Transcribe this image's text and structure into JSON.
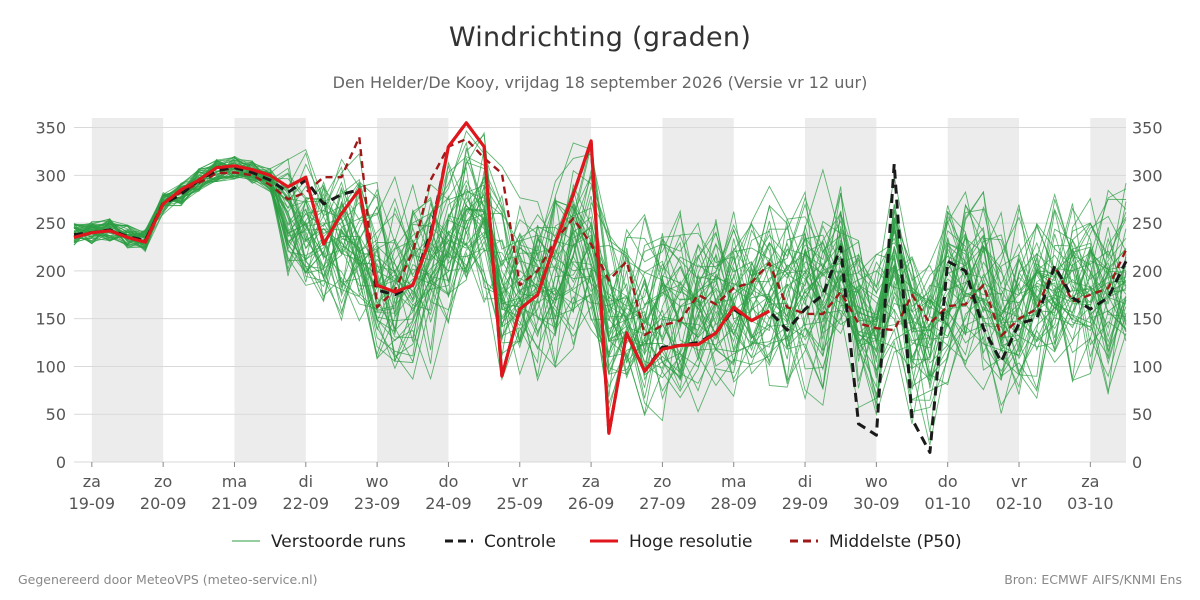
{
  "chart_data": {
    "type": "line",
    "title": "Windrichting (graden)",
    "subtitle": "Den Helder/De Kooy, vrijdag 18 september 2026 (Versie vr 12 uur)",
    "ylim": [
      0,
      360
    ],
    "yticks": [
      0,
      50,
      100,
      150,
      200,
      250,
      300,
      350
    ],
    "grid": true,
    "legend_position": "bottom",
    "x_days": [
      {
        "day": "za",
        "date": "19-09",
        "shaded": true
      },
      {
        "day": "zo",
        "date": "20-09",
        "shaded": false
      },
      {
        "day": "ma",
        "date": "21-09",
        "shaded": true
      },
      {
        "day": "di",
        "date": "22-09",
        "shaded": false
      },
      {
        "day": "wo",
        "date": "23-09",
        "shaded": true
      },
      {
        "day": "do",
        "date": "24-09",
        "shaded": false
      },
      {
        "day": "vr",
        "date": "25-09",
        "shaded": true
      },
      {
        "day": "za",
        "date": "26-09",
        "shaded": false
      },
      {
        "day": "zo",
        "date": "27-09",
        "shaded": true
      },
      {
        "day": "ma",
        "date": "28-09",
        "shaded": false
      },
      {
        "day": "di",
        "date": "29-09",
        "shaded": true
      },
      {
        "day": "wo",
        "date": "30-09",
        "shaded": false
      },
      {
        "day": "do",
        "date": "01-10",
        "shaded": true
      },
      {
        "day": "vr",
        "date": "02-10",
        "shaded": false
      },
      {
        "day": "za",
        "date": "03-10",
        "shaded": true
      }
    ],
    "x_domain_days": [
      -0.25,
      14.5
    ],
    "series": [
      {
        "name": "Controle",
        "color": "#1a1a1a",
        "dash": true,
        "points": [
          [
            -0.25,
            238
          ],
          [
            0,
            240
          ],
          [
            0.25,
            243
          ],
          [
            0.5,
            236
          ],
          [
            0.75,
            232
          ],
          [
            1,
            270
          ],
          [
            1.25,
            280
          ],
          [
            1.5,
            295
          ],
          [
            1.75,
            305
          ],
          [
            2,
            308
          ],
          [
            2.25,
            303
          ],
          [
            2.5,
            295
          ],
          [
            2.75,
            282
          ],
          [
            3,
            295
          ],
          [
            3.25,
            270
          ],
          [
            3.5,
            280
          ],
          [
            3.75,
            285
          ],
          [
            4,
            180
          ],
          [
            4.25,
            175
          ],
          [
            4.5,
            185
          ],
          [
            4.75,
            240
          ],
          [
            5,
            330
          ],
          [
            5.25,
            355
          ],
          [
            5.5,
            330
          ],
          [
            5.75,
            90
          ],
          [
            6,
            160
          ],
          [
            6.25,
            175
          ],
          [
            6.5,
            230
          ],
          [
            6.75,
            280
          ],
          [
            7,
            335
          ],
          [
            7.25,
            30
          ],
          [
            7.5,
            135
          ],
          [
            7.75,
            95
          ],
          [
            8,
            120
          ],
          [
            8.25,
            122
          ],
          [
            8.5,
            125
          ],
          [
            8.75,
            135
          ],
          [
            9,
            160
          ],
          [
            9.25,
            148
          ],
          [
            9.5,
            158
          ],
          [
            9.75,
            138
          ],
          [
            10,
            160
          ],
          [
            10.25,
            175
          ],
          [
            10.5,
            225
          ],
          [
            10.75,
            40
          ],
          [
            11,
            28
          ],
          [
            11.25,
            312
          ],
          [
            11.5,
            45
          ],
          [
            11.75,
            10
          ],
          [
            12,
            210
          ],
          [
            12.25,
            200
          ],
          [
            12.5,
            140
          ],
          [
            12.75,
            105
          ],
          [
            13,
            145
          ],
          [
            13.25,
            150
          ],
          [
            13.5,
            205
          ],
          [
            13.75,
            172
          ],
          [
            14,
            160
          ],
          [
            14.25,
            172
          ],
          [
            14.5,
            210
          ]
        ]
      },
      {
        "name": "Hoge resolutie",
        "color": "#e0161d",
        "dash": false,
        "points": [
          [
            -0.25,
            235
          ],
          [
            0,
            240
          ],
          [
            0.25,
            242
          ],
          [
            0.5,
            235
          ],
          [
            0.75,
            230
          ],
          [
            1,
            270
          ],
          [
            1.25,
            285
          ],
          [
            1.5,
            295
          ],
          [
            1.75,
            308
          ],
          [
            2,
            310
          ],
          [
            2.25,
            306
          ],
          [
            2.5,
            300
          ],
          [
            2.75,
            288
          ],
          [
            3,
            298
          ],
          [
            3.25,
            228
          ],
          [
            3.5,
            260
          ],
          [
            3.75,
            285
          ],
          [
            4,
            185
          ],
          [
            4.25,
            178
          ],
          [
            4.5,
            185
          ],
          [
            4.75,
            235
          ],
          [
            5,
            330
          ],
          [
            5.25,
            355
          ],
          [
            5.5,
            330
          ],
          [
            5.75,
            90
          ],
          [
            6,
            160
          ],
          [
            6.25,
            175
          ],
          [
            6.5,
            230
          ],
          [
            6.75,
            280
          ],
          [
            7,
            336
          ],
          [
            7.25,
            30
          ],
          [
            7.5,
            135
          ],
          [
            7.75,
            95
          ],
          [
            8,
            118
          ],
          [
            8.25,
            122
          ],
          [
            8.5,
            123
          ],
          [
            8.75,
            135
          ],
          [
            9,
            162
          ],
          [
            9.25,
            148
          ],
          [
            9.5,
            158
          ]
        ]
      },
      {
        "name": "Middelste (P50)",
        "color": "#a01818",
        "dash": true,
        "points": [
          [
            -0.25,
            236
          ],
          [
            0,
            240
          ],
          [
            0.25,
            243
          ],
          [
            0.5,
            235
          ],
          [
            0.75,
            232
          ],
          [
            1,
            272
          ],
          [
            1.25,
            282
          ],
          [
            1.5,
            292
          ],
          [
            1.75,
            302
          ],
          [
            2,
            303
          ],
          [
            2.25,
            300
          ],
          [
            2.5,
            290
          ],
          [
            2.75,
            275
          ],
          [
            3,
            282
          ],
          [
            3.25,
            298
          ],
          [
            3.5,
            298
          ],
          [
            3.75,
            340
          ],
          [
            4,
            162
          ],
          [
            4.25,
            180
          ],
          [
            4.5,
            220
          ],
          [
            4.75,
            295
          ],
          [
            5,
            330
          ],
          [
            5.25,
            338
          ],
          [
            5.5,
            318
          ],
          [
            5.75,
            302
          ],
          [
            6,
            185
          ],
          [
            6.25,
            200
          ],
          [
            6.5,
            232
          ],
          [
            6.75,
            255
          ],
          [
            7,
            228
          ],
          [
            7.25,
            190
          ],
          [
            7.5,
            210
          ],
          [
            7.75,
            133
          ],
          [
            8,
            143
          ],
          [
            8.25,
            148
          ],
          [
            8.5,
            175
          ],
          [
            8.75,
            165
          ],
          [
            9,
            182
          ],
          [
            9.25,
            188
          ],
          [
            9.5,
            208
          ],
          [
            9.75,
            162
          ],
          [
            10,
            155
          ],
          [
            10.25,
            155
          ],
          [
            10.5,
            178
          ],
          [
            10.75,
            145
          ],
          [
            11,
            140
          ],
          [
            11.25,
            138
          ],
          [
            11.5,
            175
          ],
          [
            11.75,
            145
          ],
          [
            12,
            163
          ],
          [
            12.25,
            165
          ],
          [
            12.5,
            185
          ],
          [
            12.75,
            132
          ],
          [
            13,
            150
          ],
          [
            13.25,
            160
          ],
          [
            13.5,
            205
          ],
          [
            13.75,
            168
          ],
          [
            14,
            175
          ],
          [
            14.25,
            182
          ],
          [
            14.5,
            222
          ]
        ]
      }
    ],
    "ensemble": {
      "name": "Verstoorde runs",
      "color": "#2e9e44",
      "member_count": 50,
      "stride_days": 0.25,
      "description_of_spread": "members track control closely until day 3, then diverge across 0-360"
    }
  },
  "legend": {
    "items": [
      {
        "label": "Verstoorde runs",
        "color": "#2e9e44",
        "style": "thin"
      },
      {
        "label": "Controle",
        "color": "#1a1a1a",
        "style": "dash"
      },
      {
        "label": "Hoge resolutie",
        "color": "#e0161d",
        "style": "solid"
      },
      {
        "label": "Middelste (P50)",
        "color": "#a01818",
        "style": "dash"
      }
    ]
  },
  "footer": {
    "left": "Gegenereerd door MeteoVPS (meteo-service.nl)",
    "right": "Bron: ECMWF AIFS/KNMI Ens"
  }
}
